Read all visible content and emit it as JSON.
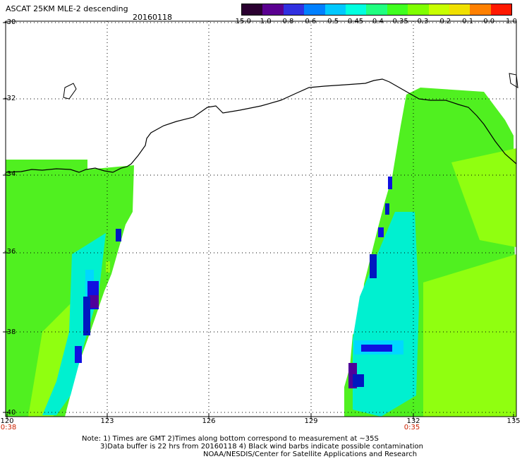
{
  "header": {
    "title": "ASCAT 25KM MLE-2 descending",
    "date": "20160118"
  },
  "colorbar": {
    "labels": [
      "-15.0",
      "-1.0",
      "-0.8",
      "-0.6",
      "-0.5",
      "-0.45",
      "-0.4",
      "-0.35",
      "-0.3",
      "-0.2",
      "-0.1",
      "0.0",
      "1.0"
    ],
    "colors": [
      "#2a0030",
      "#5a0090",
      "#3030e0",
      "#0080ff",
      "#00c8ff",
      "#00ffe0",
      "#20ff80",
      "#40ff20",
      "#80ff00",
      "#c8ff00",
      "#f0e000",
      "#ff8000",
      "#ff1800"
    ]
  },
  "axes": {
    "lat_labels": [
      "-30",
      "-32",
      "-34",
      "-36",
      "-38",
      "-40"
    ],
    "lon_labels": [
      "120",
      "123",
      "126",
      "129",
      "132",
      "135"
    ],
    "times": [
      "0:38",
      "0:35"
    ]
  },
  "map": {
    "land_color": "#ffffff",
    "coast_color": "#000000",
    "grid_style": "dotted",
    "swath_colors": {
      "green": "#50f020",
      "lime": "#90ff10",
      "aqua": "#00f0d0",
      "cyan": "#00d8ff",
      "blue": "#1010e0",
      "navy": "#0018c0",
      "purple": "#50009a"
    }
  },
  "notes": {
    "line1": "Note: 1) Times are GMT 2)Times along bottom correspond to measurement at ~35S",
    "line2": "3)Data buffer is 22 hrs from 20160118 4) Black wind barbs indicate possible contamination",
    "line3": "NOAA/NESDIS/Center for Satellite Applications and Research"
  }
}
